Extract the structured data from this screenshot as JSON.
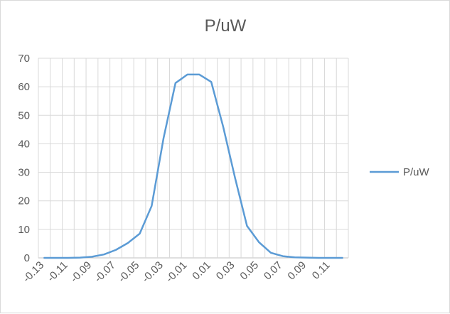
{
  "chart_data": {
    "type": "line",
    "title": "P/uW",
    "xlabel": "",
    "ylabel": "",
    "categories": [
      "-0.13",
      "-0.12",
      "-0.11",
      "-0.1",
      "-0.09",
      "-0.08",
      "-0.07",
      "-0.06",
      "-0.05",
      "-0.04",
      "-0.03",
      "-0.02",
      "-0.01",
      "0",
      "0.01",
      "0.02",
      "0.03",
      "0.04",
      "0.05",
      "0.06",
      "0.07",
      "0.08",
      "0.09",
      "0.1",
      "0.11",
      "0.12"
    ],
    "x_tick_labels": [
      "-0.13",
      "-0.11",
      "-0.09",
      "-0.07",
      "-0.05",
      "-0.03",
      "-0.01",
      "0.01",
      "0.03",
      "0.05",
      "0.07",
      "0.09",
      "0.11"
    ],
    "series": [
      {
        "name": "P/uW",
        "color": "#5b9bd5",
        "values": [
          0.0,
          0.0,
          0.0,
          0.1,
          0.4,
          1.2,
          2.8,
          5.2,
          8.5,
          18.2,
          42.0,
          61.3,
          64.3,
          64.3,
          61.7,
          46.0,
          28.0,
          11.2,
          5.5,
          1.8,
          0.6,
          0.2,
          0.1,
          0.0,
          0.0,
          0.0
        ]
      }
    ],
    "ylim": [
      0,
      70
    ],
    "y_ticks": [
      0,
      10,
      20,
      30,
      40,
      50,
      60,
      70
    ],
    "grid": true,
    "legend_position": "right"
  }
}
